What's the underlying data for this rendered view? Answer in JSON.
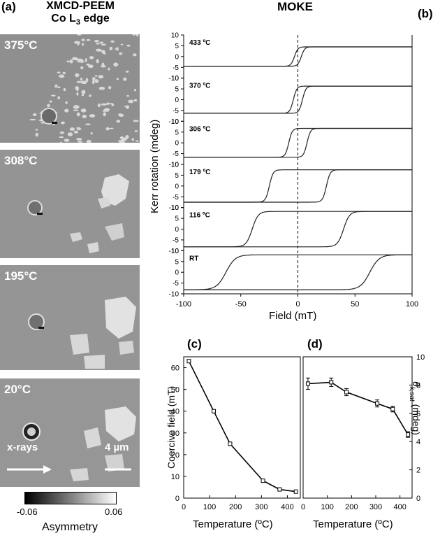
{
  "panel_a": {
    "label": "(a)",
    "title_line1": "XMCD-PEEM",
    "title_line2_pre": "Co L",
    "title_line2_sub": "3",
    "title_line2_post": " edge",
    "images": [
      {
        "temp": "375°C"
      },
      {
        "temp": "308°C"
      },
      {
        "temp": "195°C"
      },
      {
        "temp": "20°C"
      }
    ],
    "xray_label": "x-rays",
    "scale_label": "4 µm",
    "colorbar": {
      "min": "-0.06",
      "max": "0.06",
      "label": "Asymmetry"
    }
  },
  "panel_b": {
    "label": "(b)",
    "title": "MOKE",
    "ylabel": "Kerr rotation (mdeg)",
    "xlabel": "Field (mT)",
    "x_ticks": [
      "-100",
      "-50",
      "0",
      "50",
      "100"
    ],
    "y_ticks": [
      "10",
      "5",
      "0",
      "-5",
      "-10"
    ],
    "temps": [
      "433 ºC",
      "370 ºC",
      "306 ºC",
      "179 ºC",
      "116 ºC",
      "RT"
    ]
  },
  "panel_c": {
    "label": "(c)",
    "ylabel": "Coercive field (mT)",
    "xlabel": "Temperature (ºC)",
    "x_ticks": [
      "0",
      "100",
      "200",
      "300",
      "400"
    ],
    "y_ticks": [
      "0",
      "10",
      "20",
      "30",
      "40",
      "50",
      "60"
    ]
  },
  "panel_d": {
    "label": "(d)",
    "ylabel_sym": "θ",
    "ylabel_sub": "k,sat",
    "ylabel_unit": " (mdeg)",
    "xlabel": "Temperature (ºC)",
    "x_ticks": [
      "0",
      "100",
      "200",
      "300",
      "400"
    ],
    "y_ticks": [
      "0",
      "2",
      "4",
      "6",
      "8",
      "10"
    ]
  },
  "chart_data": [
    {
      "type": "line",
      "title": "MOKE",
      "xlabel": "Field (mT)",
      "ylabel": "Kerr rotation (mdeg)",
      "xlim": [
        -100,
        100
      ],
      "ylim": [
        -10,
        10
      ],
      "series": [
        {
          "name": "433 ºC",
          "coercive_field": 3,
          "saturation": 4.5
        },
        {
          "name": "370 ºC",
          "coercive_field": 4,
          "saturation": 6.3
        },
        {
          "name": "306 ºC",
          "coercive_field": 8,
          "saturation": 6.7
        },
        {
          "name": "179 ºC",
          "coercive_field": 25,
          "saturation": 7.5
        },
        {
          "name": "116 ºC",
          "coercive_field": 40,
          "saturation": 8.2
        },
        {
          "name": "RT",
          "coercive_field": 63,
          "saturation": 8.1
        }
      ]
    },
    {
      "type": "line",
      "xlabel": "Temperature (ºC)",
      "ylabel": "Coercive field (mT)",
      "xlim": [
        0,
        450
      ],
      "ylim": [
        0,
        65
      ],
      "x": [
        20,
        116,
        179,
        306,
        370,
        433
      ],
      "values": [
        63,
        40,
        25,
        8,
        4,
        3
      ]
    },
    {
      "type": "line",
      "xlabel": "Temperature (ºC)",
      "ylabel": "θk,sat (mdeg)",
      "xlim": [
        0,
        450
      ],
      "ylim": [
        0,
        10
      ],
      "x": [
        20,
        116,
        179,
        306,
        370,
        433
      ],
      "values": [
        8.1,
        8.2,
        7.5,
        6.7,
        6.3,
        4.5
      ],
      "errors": [
        0.4,
        0.3,
        0.25,
        0.25,
        0.2,
        0.2
      ]
    }
  ]
}
